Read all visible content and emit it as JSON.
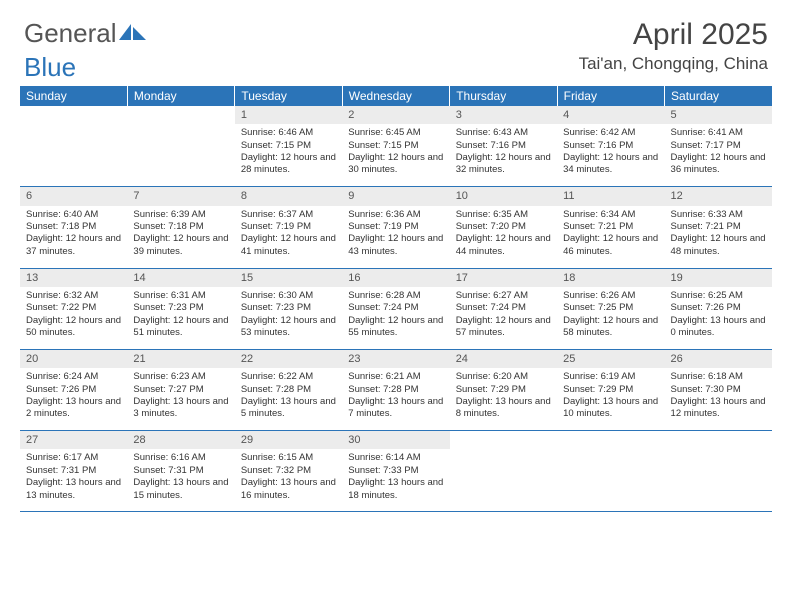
{
  "logo": {
    "part1": "General",
    "part2": "Blue"
  },
  "header": {
    "title": "April 2025",
    "location": "Tai'an, Chongqing, China"
  },
  "weekdays": [
    "Sunday",
    "Monday",
    "Tuesday",
    "Wednesday",
    "Thursday",
    "Friday",
    "Saturday"
  ],
  "colors": {
    "accent": "#2b74b8",
    "header_bg": "#ececec"
  },
  "grid": [
    [
      {
        "empty": true
      },
      {
        "empty": true
      },
      {
        "n": "1",
        "sr": "6:46 AM",
        "ss": "7:15 PM",
        "dl": "12 hours and 28 minutes."
      },
      {
        "n": "2",
        "sr": "6:45 AM",
        "ss": "7:15 PM",
        "dl": "12 hours and 30 minutes."
      },
      {
        "n": "3",
        "sr": "6:43 AM",
        "ss": "7:16 PM",
        "dl": "12 hours and 32 minutes."
      },
      {
        "n": "4",
        "sr": "6:42 AM",
        "ss": "7:16 PM",
        "dl": "12 hours and 34 minutes."
      },
      {
        "n": "5",
        "sr": "6:41 AM",
        "ss": "7:17 PM",
        "dl": "12 hours and 36 minutes."
      }
    ],
    [
      {
        "n": "6",
        "sr": "6:40 AM",
        "ss": "7:18 PM",
        "dl": "12 hours and 37 minutes."
      },
      {
        "n": "7",
        "sr": "6:39 AM",
        "ss": "7:18 PM",
        "dl": "12 hours and 39 minutes."
      },
      {
        "n": "8",
        "sr": "6:37 AM",
        "ss": "7:19 PM",
        "dl": "12 hours and 41 minutes."
      },
      {
        "n": "9",
        "sr": "6:36 AM",
        "ss": "7:19 PM",
        "dl": "12 hours and 43 minutes."
      },
      {
        "n": "10",
        "sr": "6:35 AM",
        "ss": "7:20 PM",
        "dl": "12 hours and 44 minutes."
      },
      {
        "n": "11",
        "sr": "6:34 AM",
        "ss": "7:21 PM",
        "dl": "12 hours and 46 minutes."
      },
      {
        "n": "12",
        "sr": "6:33 AM",
        "ss": "7:21 PM",
        "dl": "12 hours and 48 minutes."
      }
    ],
    [
      {
        "n": "13",
        "sr": "6:32 AM",
        "ss": "7:22 PM",
        "dl": "12 hours and 50 minutes."
      },
      {
        "n": "14",
        "sr": "6:31 AM",
        "ss": "7:23 PM",
        "dl": "12 hours and 51 minutes."
      },
      {
        "n": "15",
        "sr": "6:30 AM",
        "ss": "7:23 PM",
        "dl": "12 hours and 53 minutes."
      },
      {
        "n": "16",
        "sr": "6:28 AM",
        "ss": "7:24 PM",
        "dl": "12 hours and 55 minutes."
      },
      {
        "n": "17",
        "sr": "6:27 AM",
        "ss": "7:24 PM",
        "dl": "12 hours and 57 minutes."
      },
      {
        "n": "18",
        "sr": "6:26 AM",
        "ss": "7:25 PM",
        "dl": "12 hours and 58 minutes."
      },
      {
        "n": "19",
        "sr": "6:25 AM",
        "ss": "7:26 PM",
        "dl": "13 hours and 0 minutes."
      }
    ],
    [
      {
        "n": "20",
        "sr": "6:24 AM",
        "ss": "7:26 PM",
        "dl": "13 hours and 2 minutes."
      },
      {
        "n": "21",
        "sr": "6:23 AM",
        "ss": "7:27 PM",
        "dl": "13 hours and 3 minutes."
      },
      {
        "n": "22",
        "sr": "6:22 AM",
        "ss": "7:28 PM",
        "dl": "13 hours and 5 minutes."
      },
      {
        "n": "23",
        "sr": "6:21 AM",
        "ss": "7:28 PM",
        "dl": "13 hours and 7 minutes."
      },
      {
        "n": "24",
        "sr": "6:20 AM",
        "ss": "7:29 PM",
        "dl": "13 hours and 8 minutes."
      },
      {
        "n": "25",
        "sr": "6:19 AM",
        "ss": "7:29 PM",
        "dl": "13 hours and 10 minutes."
      },
      {
        "n": "26",
        "sr": "6:18 AM",
        "ss": "7:30 PM",
        "dl": "13 hours and 12 minutes."
      }
    ],
    [
      {
        "n": "27",
        "sr": "6:17 AM",
        "ss": "7:31 PM",
        "dl": "13 hours and 13 minutes."
      },
      {
        "n": "28",
        "sr": "6:16 AM",
        "ss": "7:31 PM",
        "dl": "13 hours and 15 minutes."
      },
      {
        "n": "29",
        "sr": "6:15 AM",
        "ss": "7:32 PM",
        "dl": "13 hours and 16 minutes."
      },
      {
        "n": "30",
        "sr": "6:14 AM",
        "ss": "7:33 PM",
        "dl": "13 hours and 18 minutes."
      },
      {
        "empty": true
      },
      {
        "empty": true
      },
      {
        "empty": true
      }
    ]
  ],
  "labels": {
    "sunrise": "Sunrise: ",
    "sunset": "Sunset: ",
    "daylight": "Daylight: "
  }
}
